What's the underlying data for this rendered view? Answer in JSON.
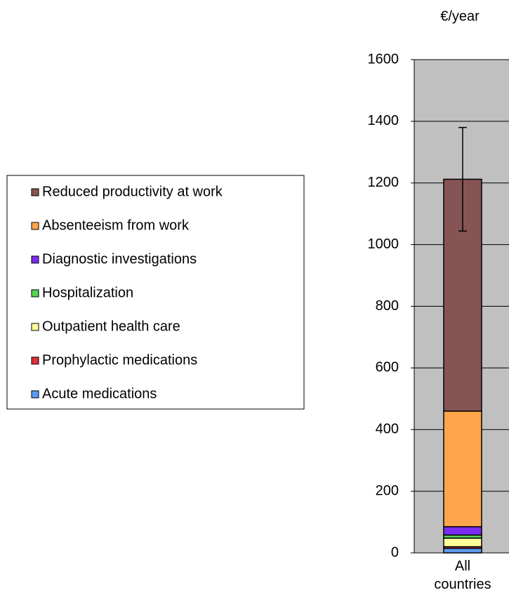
{
  "chart_data": {
    "type": "stacked-bar",
    "y_label": "€/year",
    "categories": [
      "All countries"
    ],
    "series": [
      {
        "name": "Acute medications",
        "color": "#5b9bf0",
        "values": [
          15
        ]
      },
      {
        "name": "Prophylactic medications",
        "color": "#e0303a",
        "values": [
          5
        ]
      },
      {
        "name": "Outpatient health care",
        "color": "#ffff99",
        "values": [
          28
        ]
      },
      {
        "name": "Hospitalization",
        "color": "#55d655",
        "values": [
          10
        ]
      },
      {
        "name": "Diagnostic investigations",
        "color": "#7a2cf0",
        "values": [
          27
        ]
      },
      {
        "name": "Absenteeism from work",
        "color": "#ffa64d",
        "values": [
          375
        ]
      },
      {
        "name": "Reduced productivity at work",
        "color": "#875454",
        "values": [
          752
        ],
        "errors": [
          168
        ]
      }
    ],
    "ylim": [
      0,
      1600
    ],
    "yticks": [
      0,
      200,
      400,
      600,
      800,
      1000,
      1200,
      1400,
      1600
    ],
    "grid": true
  }
}
